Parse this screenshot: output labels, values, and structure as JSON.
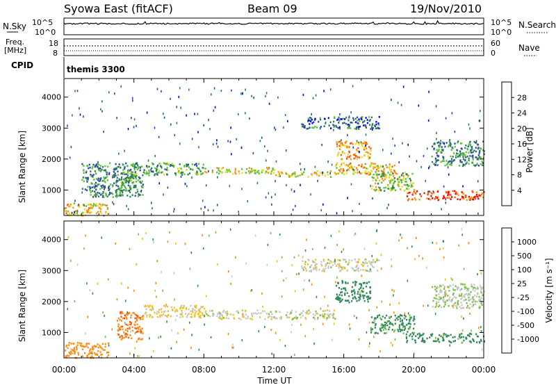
{
  "header": {
    "station": "Syowa East (fitACF)",
    "beam": "Beam 09",
    "date": "19/Nov/2010"
  },
  "strips": {
    "nsky_label": "N.Sky",
    "nsearch_label": "N.Search",
    "noise_ticks": [
      "10^5",
      "10^0"
    ],
    "freq_label_1": "Freq.",
    "freq_label_2": "[MHz]",
    "freq_ticks": [
      "18",
      "8"
    ],
    "nave_label": "Nave",
    "nave_ticks": [
      "60",
      "0"
    ],
    "cpid_label": "CPID",
    "cpid_value": "themis 3300"
  },
  "axes": {
    "ylabel": "Slant Range [km]",
    "y_ticks": [
      "1000",
      "2000",
      "3000",
      "4000"
    ],
    "x_ticks": [
      "00:00",
      "04:00",
      "08:00",
      "12:00",
      "16:00",
      "20:00",
      "00:00"
    ],
    "xlabel": "Time UT"
  },
  "power_colorbar": {
    "label": "Power [dB]",
    "ticks": [
      "4",
      "8",
      "12",
      "16",
      "20",
      "24",
      "28"
    ],
    "colors": [
      "#0000ff",
      "#2a4aa8",
      "#2f7a5a",
      "#56c038",
      "#e0e020",
      "#ff9010",
      "#ff5010",
      "#ff0000"
    ]
  },
  "velocity_colorbar": {
    "label": "Velocity [m s⁻¹]",
    "ticks": [
      "1000",
      "500",
      "100",
      "25",
      "-25",
      "-100",
      "-500",
      "-1000"
    ],
    "colors": [
      "#1e3ca8",
      "#2a6aa0",
      "#2f8a5a",
      "#7ac040",
      "#c8c8c8",
      "#f0c020",
      "#ff8c10",
      "#ff5010",
      "#ff0000"
    ]
  },
  "chart_data": [
    {
      "type": "heatmap",
      "title": "Power",
      "xlabel": "Time UT",
      "ylabel": "Slant Range [km]",
      "xlim": [
        0,
        24
      ],
      "ylim": [
        180,
        4600
      ],
      "colorbar": "Power [dB]",
      "features": [
        {
          "t": [
            0.0,
            2.5
          ],
          "r": [
            200,
            600
          ],
          "v": 20
        },
        {
          "t": [
            1.0,
            4.5
          ],
          "r": [
            800,
            1900
          ],
          "v": 10
        },
        {
          "t": [
            3.2,
            4.2
          ],
          "r": [
            1100,
            1600
          ],
          "v": 14
        },
        {
          "t": [
            4.5,
            8.0
          ],
          "r": [
            1500,
            1900
          ],
          "v": 12
        },
        {
          "t": [
            8.0,
            12.0
          ],
          "r": [
            1550,
            1750
          ],
          "v": 18
        },
        {
          "t": [
            12.0,
            15.5
          ],
          "r": [
            1450,
            1650
          ],
          "v": 18
        },
        {
          "t": [
            15.5,
            19.0
          ],
          "r": [
            1500,
            1900
          ],
          "v": 20
        },
        {
          "t": [
            15.5,
            17.5
          ],
          "r": [
            2000,
            2600
          ],
          "v": 22
        },
        {
          "t": [
            17.5,
            20.0
          ],
          "r": [
            1000,
            1600
          ],
          "v": 16
        },
        {
          "t": [
            19.5,
            24.0
          ],
          "r": [
            700,
            1000
          ],
          "v": 26
        },
        {
          "t": [
            13.5,
            18.0
          ],
          "r": [
            3000,
            3400
          ],
          "v": 8
        },
        {
          "t": [
            21.0,
            24.0
          ],
          "r": [
            1800,
            2600
          ],
          "v": 10
        }
      ]
    },
    {
      "type": "heatmap",
      "title": "Velocity",
      "xlabel": "Time UT",
      "ylabel": "Slant Range [km]",
      "xlim": [
        0,
        24
      ],
      "ylim": [
        180,
        4600
      ],
      "colorbar": "Velocity [m s⁻¹]",
      "features": [
        {
          "t": [
            0.0,
            2.5
          ],
          "r": [
            200,
            700
          ],
          "v": -300
        },
        {
          "t": [
            3.0,
            4.5
          ],
          "r": [
            800,
            1700
          ],
          "v": -400
        },
        {
          "t": [
            4.5,
            8.0
          ],
          "r": [
            1500,
            1900
          ],
          "v": -40
        },
        {
          "t": [
            8.0,
            15.5
          ],
          "r": [
            1450,
            1750
          ],
          "v": 0
        },
        {
          "t": [
            15.5,
            17.5
          ],
          "r": [
            2000,
            2700
          ],
          "v": 300
        },
        {
          "t": [
            17.5,
            20.0
          ],
          "r": [
            1000,
            1600
          ],
          "v": 150
        },
        {
          "t": [
            19.5,
            24.0
          ],
          "r": [
            700,
            1000
          ],
          "v": 200
        },
        {
          "t": [
            13.5,
            18.0
          ],
          "r": [
            3000,
            3400
          ],
          "v": 0
        },
        {
          "t": [
            21.0,
            24.0
          ],
          "r": [
            1800,
            2600
          ],
          "v": 20
        }
      ]
    }
  ]
}
